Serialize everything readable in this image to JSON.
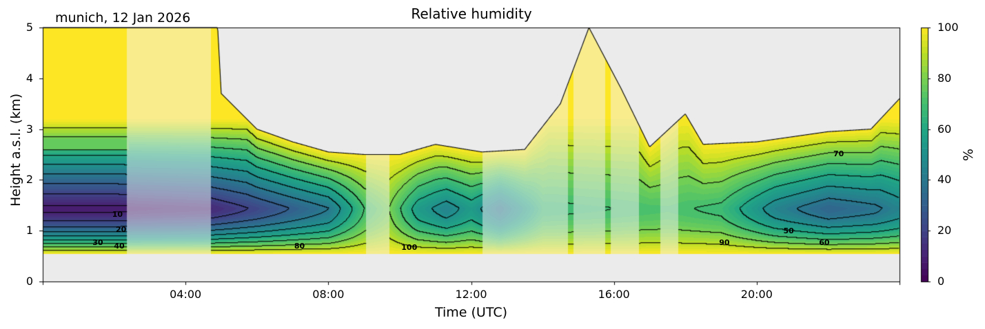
{
  "chart_data": {
    "type": "heatmap",
    "title": "Relative humidity",
    "subtitle": "munich, 12 Jan 2026",
    "xlabel": "Time (UTC)",
    "ylabel": "Height a.s.l. (km)",
    "xlim": [
      0,
      24
    ],
    "ylim": [
      0,
      5
    ],
    "x_ticks": [
      {
        "value": 4,
        "label": "04:00"
      },
      {
        "value": 8,
        "label": "08:00"
      },
      {
        "value": 12,
        "label": "12:00"
      },
      {
        "value": 16,
        "label": "16:00"
      },
      {
        "value": 20,
        "label": "20:00"
      }
    ],
    "y_ticks": [
      {
        "value": 0,
        "label": "0"
      },
      {
        "value": 1,
        "label": "1"
      },
      {
        "value": 2,
        "label": "2"
      },
      {
        "value": 3,
        "label": "3"
      },
      {
        "value": 4,
        "label": "4"
      },
      {
        "value": 5,
        "label": "5"
      }
    ],
    "colorbar": {
      "label": "%",
      "colormap": "viridis",
      "range": [
        0,
        100
      ],
      "ticks": [
        {
          "value": 0,
          "label": "0"
        },
        {
          "value": 20,
          "label": "20"
        },
        {
          "value": 40,
          "label": "40"
        },
        {
          "value": 60,
          "label": "60"
        },
        {
          "value": 80,
          "label": "80"
        },
        {
          "value": 100,
          "label": "100"
        }
      ]
    },
    "data_bottom_km": 0.55,
    "missing_color": "#ebebeb",
    "contour_levels": [
      10,
      20,
      30,
      40,
      50,
      60,
      70,
      80,
      90,
      100
    ],
    "contour_labels": [
      {
        "text": "10",
        "time": 2.1,
        "height": 1.3
      },
      {
        "text": "20",
        "time": 2.2,
        "height": 1.0
      },
      {
        "text": "30",
        "time": 1.55,
        "height": 0.75
      },
      {
        "text": "40",
        "time": 2.15,
        "height": 0.68
      },
      {
        "text": "80",
        "time": 7.2,
        "height": 0.68
      },
      {
        "text": "100",
        "time": 10.2,
        "height": 0.65
      },
      {
        "text": "90",
        "time": 19.1,
        "height": 0.75
      },
      {
        "text": "50",
        "time": 20.9,
        "height": 0.98
      },
      {
        "text": "60",
        "time": 21.9,
        "height": 0.75
      },
      {
        "text": "70",
        "time": 22.3,
        "height": 2.5
      }
    ],
    "boundary_layer_min_rh": [
      {
        "time": 0.0,
        "rh": 8
      },
      {
        "time": 2.0,
        "rh": 8
      },
      {
        "time": 4.7,
        "rh": 12
      },
      {
        "time": 6.0,
        "rh": 22
      },
      {
        "time": 8.0,
        "rh": 40
      },
      {
        "time": 9.0,
        "rh": 70
      },
      {
        "time": 9.7,
        "rh": 80
      },
      {
        "time": 10.5,
        "rh": 55
      },
      {
        "time": 11.3,
        "rh": 45
      },
      {
        "time": 12.0,
        "rh": 55
      },
      {
        "time": 12.8,
        "rh": 40
      },
      {
        "time": 14.0,
        "rh": 68
      },
      {
        "time": 16.0,
        "rh": 70
      },
      {
        "time": 17.5,
        "rh": 72
      },
      {
        "time": 19.0,
        "rh": 68
      },
      {
        "time": 20.5,
        "rh": 45
      },
      {
        "time": 22.0,
        "rh": 33
      },
      {
        "time": 23.3,
        "rh": 38
      },
      {
        "time": 24.0,
        "rh": 45
      }
    ],
    "moist_top_km": [
      {
        "time": 0.0,
        "height": 5.0
      },
      {
        "time": 4.9,
        "height": 5.0
      },
      {
        "time": 5.0,
        "height": 3.7
      },
      {
        "time": 6.0,
        "height": 3.0
      },
      {
        "time": 7.0,
        "height": 2.75
      },
      {
        "time": 8.0,
        "height": 2.55
      },
      {
        "time": 9.0,
        "height": 2.5
      },
      {
        "time": 10.0,
        "height": 2.5
      },
      {
        "time": 11.0,
        "height": 2.7
      },
      {
        "time": 12.3,
        "height": 2.55
      },
      {
        "time": 13.5,
        "height": 2.6
      },
      {
        "time": 14.5,
        "height": 3.5
      },
      {
        "time": 15.3,
        "height": 5.0
      },
      {
        "time": 16.2,
        "height": 3.8
      },
      {
        "time": 17.0,
        "height": 2.65
      },
      {
        "time": 18.0,
        "height": 3.3
      },
      {
        "time": 18.5,
        "height": 2.7
      },
      {
        "time": 20.0,
        "height": 2.75
      },
      {
        "time": 22.0,
        "height": 2.95
      },
      {
        "time": 23.2,
        "height": 3.0
      },
      {
        "time": 24.0,
        "height": 3.6
      }
    ],
    "faded_intervals_h": [
      [
        2.35,
        4.7
      ],
      [
        9.05,
        9.7
      ],
      [
        12.3,
        14.7
      ],
      [
        14.85,
        15.75
      ],
      [
        15.9,
        16.7
      ],
      [
        17.3,
        17.8
      ]
    ]
  }
}
